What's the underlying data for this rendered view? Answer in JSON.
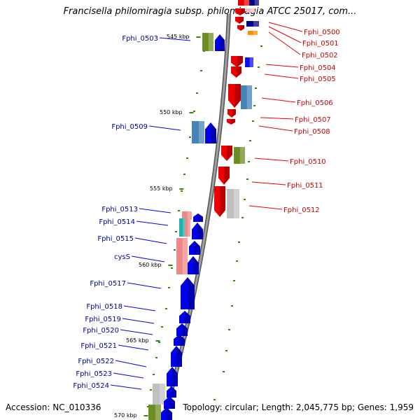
{
  "title": "Francisella philomiragia subsp. philomiragia ATCC 25017, com...",
  "accession": "Accession: NC_010336",
  "summary": "Topology: circular; Length: 2,045,775 bp; Genes: 1,959",
  "scale_labels": [
    "545 kbp",
    "550 kbp",
    "555 kbp",
    "560 kbp",
    "565 kbp",
    "570 kbp"
  ],
  "genes_left": [
    {
      "name": "Fphi_0503",
      "color": "#000099"
    },
    {
      "name": "Fphi_0509",
      "color": "#000099"
    },
    {
      "name": "Fphi_0513",
      "color": "#000099"
    },
    {
      "name": "Fphi_0514",
      "color": "#000099"
    },
    {
      "name": "Fphi_0515",
      "color": "#000099"
    },
    {
      "name": "cysS",
      "color": "#000099"
    },
    {
      "name": "Fphi_0517",
      "color": "#000099"
    },
    {
      "name": "Fphi_0518",
      "color": "#000099"
    },
    {
      "name": "Fphi_0519",
      "color": "#000099"
    },
    {
      "name": "Fphi_0520",
      "color": "#000099"
    },
    {
      "name": "Fphi_0521",
      "color": "#000099"
    },
    {
      "name": "Fphi_0522",
      "color": "#000099"
    },
    {
      "name": "Fphi_0523",
      "color": "#000099"
    },
    {
      "name": "Fphi_0524",
      "color": "#000099"
    }
  ],
  "genes_right": [
    {
      "name": "Fphi_0500",
      "color": "#cc0000"
    },
    {
      "name": "Fphi_0501",
      "color": "#cc0000"
    },
    {
      "name": "Fphi_0502",
      "color": "#cc0000"
    },
    {
      "name": "Fphi_0504",
      "color": "#cc0000"
    },
    {
      "name": "Fphi_0505",
      "color": "#cc0000"
    },
    {
      "name": "Fphi_0506",
      "color": "#cc0000"
    },
    {
      "name": "Fphi_0507",
      "color": "#cc0000"
    },
    {
      "name": "Fphi_0508",
      "color": "#cc0000"
    },
    {
      "name": "Fphi_0510",
      "color": "#cc0000"
    },
    {
      "name": "Fphi_0511",
      "color": "#cc0000"
    },
    {
      "name": "Fphi_0512",
      "color": "#cc0000"
    }
  ],
  "colors": {
    "backbone": "#808080",
    "forward_cds": "#0000ee",
    "reverse_cds": "#ee0000",
    "tick": "#2e8b00",
    "olive": "#6b8e23",
    "steel": "#4682b4",
    "gray": "#c0c0c0",
    "pink": "#ee8888",
    "cyan": "#20b2aa",
    "orange": "#ff8c00",
    "navy": "#000080"
  }
}
